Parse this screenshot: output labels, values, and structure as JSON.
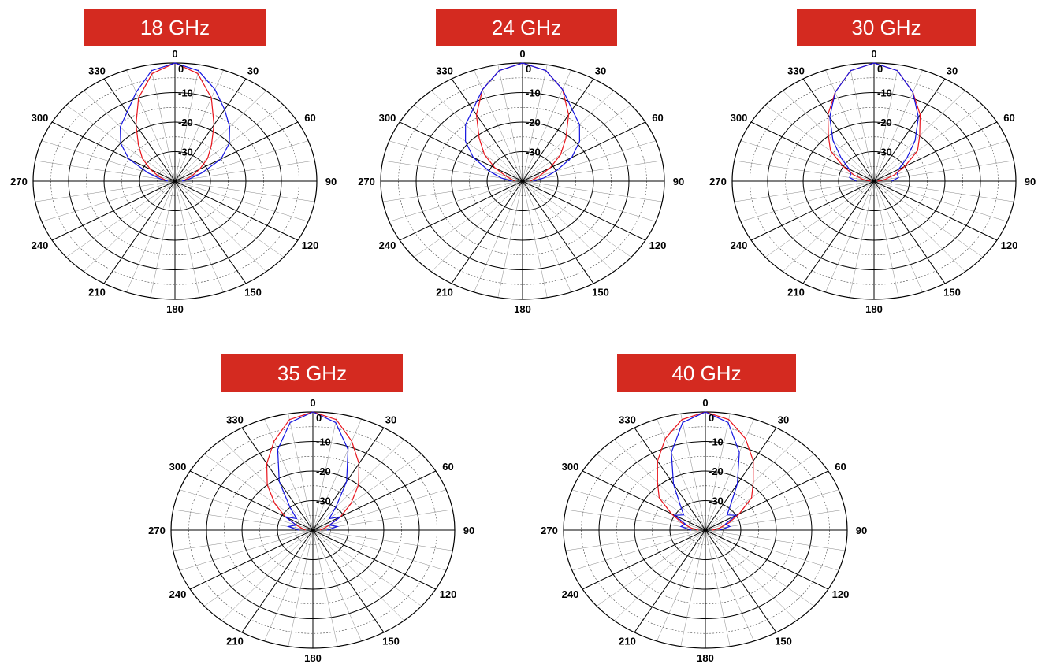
{
  "style": {
    "banner_color": "#d42a20",
    "series_colors": [
      "#e8141c",
      "#1414e0"
    ]
  },
  "chart_data": [
    {
      "type": "polar-line",
      "title": "18 GHz",
      "angle_ticks": [
        "0",
        "30",
        "60",
        "90",
        "120",
        "150",
        "180",
        "210",
        "240",
        "270",
        "300",
        "330"
      ],
      "radial_ticks": [
        "0",
        "-10",
        "-20",
        "-30"
      ],
      "r_range": [
        -40,
        0
      ],
      "angle_range": [
        -90,
        90
      ],
      "series": [
        {
          "color": "#e8141c",
          "points": [
            [
              -90,
              -37.5
            ],
            [
              -80,
              -37
            ],
            [
              -70,
              -35
            ],
            [
              -60,
              -32
            ],
            [
              -50,
              -28
            ],
            [
              -40,
              -24
            ],
            [
              -30,
              -18
            ],
            [
              -20,
              -10
            ],
            [
              -10,
              -3
            ],
            [
              0,
              0
            ],
            [
              10,
              -3
            ],
            [
              20,
              -10
            ],
            [
              30,
              -18
            ],
            [
              40,
              -24
            ],
            [
              50,
              -28
            ],
            [
              60,
              -32
            ],
            [
              70,
              -35
            ],
            [
              80,
              -37
            ],
            [
              90,
              -37.5
            ]
          ]
        },
        {
          "color": "#1414e0",
          "points": [
            [
              -90,
              -38
            ],
            [
              -80,
              -36
            ],
            [
              -70,
              -32
            ],
            [
              -60,
              -25
            ],
            [
              -50,
              -20
            ],
            [
              -40,
              -16
            ],
            [
              -30,
              -13
            ],
            [
              -20,
              -8
            ],
            [
              -10,
              -2
            ],
            [
              0,
              0
            ],
            [
              10,
              -2
            ],
            [
              20,
              -7
            ],
            [
              30,
              -12
            ],
            [
              40,
              -16
            ],
            [
              50,
              -20
            ],
            [
              60,
              -25
            ],
            [
              70,
              -32
            ],
            [
              80,
              -36
            ],
            [
              90,
              -38
            ]
          ]
        }
      ]
    },
    {
      "type": "polar-line",
      "title": "24 GHz",
      "angle_ticks": [
        "0",
        "30",
        "60",
        "90",
        "120",
        "150",
        "180",
        "210",
        "240",
        "270",
        "300",
        "330"
      ],
      "radial_ticks": [
        "0",
        "-10",
        "-20",
        "-30"
      ],
      "r_range": [
        -40,
        0
      ],
      "angle_range": [
        -90,
        90
      ],
      "series": [
        {
          "color": "#e8141c",
          "points": [
            [
              -90,
              -38
            ],
            [
              -80,
              -37
            ],
            [
              -70,
              -35
            ],
            [
              -60,
              -31
            ],
            [
              -50,
              -26
            ],
            [
              -40,
              -21
            ],
            [
              -30,
              -14
            ],
            [
              -20,
              -7
            ],
            [
              -10,
              -2
            ],
            [
              0,
              0
            ],
            [
              10,
              -2
            ],
            [
              20,
              -7
            ],
            [
              30,
              -14
            ],
            [
              40,
              -21
            ],
            [
              50,
              -26
            ],
            [
              60,
              -31
            ],
            [
              70,
              -35
            ],
            [
              80,
              -37
            ],
            [
              90,
              -38
            ]
          ]
        },
        {
          "color": "#1414e0",
          "points": [
            [
              -90,
              -37
            ],
            [
              -80,
              -34
            ],
            [
              -70,
              -30
            ],
            [
              -60,
              -24
            ],
            [
              -50,
              -19
            ],
            [
              -40,
              -15
            ],
            [
              -30,
              -12
            ],
            [
              -20,
              -7
            ],
            [
              -10,
              -2
            ],
            [
              0,
              0
            ],
            [
              10,
              -2
            ],
            [
              20,
              -7
            ],
            [
              30,
              -12
            ],
            [
              40,
              -15
            ],
            [
              50,
              -19
            ],
            [
              60,
              -24
            ],
            [
              70,
              -30
            ],
            [
              80,
              -34
            ],
            [
              90,
              -37
            ]
          ]
        }
      ]
    },
    {
      "type": "polar-line",
      "title": "30 GHz",
      "angle_ticks": [
        "0",
        "30",
        "60",
        "90",
        "120",
        "150",
        "180",
        "210",
        "240",
        "270",
        "300",
        "330"
      ],
      "radial_ticks": [
        "0",
        "-10",
        "-20",
        "-30"
      ],
      "r_range": [
        -40,
        0
      ],
      "angle_range": [
        -90,
        90
      ],
      "series": [
        {
          "color": "#e8141c",
          "points": [
            [
              -90,
              -39
            ],
            [
              -80,
              -37
            ],
            [
              -70,
              -34
            ],
            [
              -60,
              -30
            ],
            [
              -50,
              -24
            ],
            [
              -40,
              -20
            ],
            [
              -30,
              -14
            ],
            [
              -20,
              -8
            ],
            [
              -10,
              -2
            ],
            [
              0,
              0
            ],
            [
              10,
              -2
            ],
            [
              20,
              -8
            ],
            [
              30,
              -14
            ],
            [
              40,
              -20
            ],
            [
              50,
              -24
            ],
            [
              60,
              -30
            ],
            [
              70,
              -34
            ],
            [
              80,
              -37
            ],
            [
              90,
              -39
            ]
          ]
        },
        {
          "color": "#1414e0",
          "points": [
            [
              -90,
              -35
            ],
            [
              -80,
              -33
            ],
            [
              -70,
              -33
            ],
            [
              -60,
              -32
            ],
            [
              -50,
              -28
            ],
            [
              -40,
              -22
            ],
            [
              -30,
              -15
            ],
            [
              -20,
              -8
            ],
            [
              -10,
              -2
            ],
            [
              0,
              0
            ],
            [
              10,
              -2
            ],
            [
              20,
              -8
            ],
            [
              30,
              -15
            ],
            [
              40,
              -22
            ],
            [
              50,
              -28
            ],
            [
              60,
              -32
            ],
            [
              70,
              -33
            ],
            [
              80,
              -33
            ],
            [
              90,
              -35
            ]
          ]
        }
      ]
    },
    {
      "type": "polar-line",
      "title": "35 GHz",
      "angle_ticks": [
        "0",
        "30",
        "60",
        "90",
        "120",
        "150",
        "180",
        "210",
        "240",
        "270",
        "300",
        "330"
      ],
      "radial_ticks": [
        "0",
        "-10",
        "-20",
        "-30"
      ],
      "r_range": [
        -40,
        0
      ],
      "angle_range": [
        -90,
        90
      ],
      "series": [
        {
          "color": "#e8141c",
          "points": [
            [
              -90,
              -38
            ],
            [
              -80,
              -37
            ],
            [
              -70,
              -35
            ],
            [
              -60,
              -31
            ],
            [
              -50,
              -26
            ],
            [
              -40,
              -20
            ],
            [
              -30,
              -14
            ],
            [
              -20,
              -8
            ],
            [
              -10,
              -2
            ],
            [
              0,
              0
            ],
            [
              10,
              -2
            ],
            [
              20,
              -8
            ],
            [
              30,
              -14
            ],
            [
              40,
              -20
            ],
            [
              50,
              -26
            ],
            [
              60,
              -31
            ],
            [
              70,
              -35
            ],
            [
              80,
              -37
            ],
            [
              90,
              -38
            ]
          ]
        },
        {
          "color": "#1414e0",
          "points": [
            [
              -90,
              -36
            ],
            [
              -80,
              -33
            ],
            [
              -70,
              -35
            ],
            [
              -60,
              -31
            ],
            [
              -50,
              -34
            ],
            [
              -40,
              -30
            ],
            [
              -30,
              -21
            ],
            [
              -20,
              -11
            ],
            [
              -10,
              -3
            ],
            [
              0,
              0
            ],
            [
              10,
              -3
            ],
            [
              20,
              -11
            ],
            [
              30,
              -21
            ],
            [
              40,
              -30
            ],
            [
              50,
              -34
            ],
            [
              60,
              -31
            ],
            [
              70,
              -35
            ],
            [
              80,
              -33
            ],
            [
              90,
              -36
            ]
          ]
        }
      ]
    },
    {
      "type": "polar-line",
      "title": "40 GHz",
      "angle_ticks": [
        "0",
        "30",
        "60",
        "90",
        "120",
        "150",
        "180",
        "210",
        "240",
        "270",
        "300",
        "330"
      ],
      "radial_ticks": [
        "0",
        "-10",
        "-20",
        "-30"
      ],
      "r_range": [
        -40,
        0
      ],
      "angle_range": [
        -90,
        90
      ],
      "series": [
        {
          "color": "#e8141c",
          "points": [
            [
              -90,
              -38
            ],
            [
              -80,
              -36
            ],
            [
              -70,
              -33
            ],
            [
              -60,
              -29
            ],
            [
              -50,
              -23
            ],
            [
              -40,
              -19
            ],
            [
              -30,
              -13
            ],
            [
              -20,
              -7
            ],
            [
              -10,
              -2
            ],
            [
              0,
              0
            ],
            [
              10,
              -2
            ],
            [
              20,
              -7
            ],
            [
              30,
              -13
            ],
            [
              40,
              -19
            ],
            [
              50,
              -23
            ],
            [
              60,
              -29
            ],
            [
              70,
              -33
            ],
            [
              80,
              -36
            ],
            [
              90,
              -38
            ]
          ]
        },
        {
          "color": "#1414e0",
          "points": [
            [
              -90,
              -36
            ],
            [
              -80,
              -33
            ],
            [
              -70,
              -34
            ],
            [
              -60,
              -30
            ],
            [
              -50,
              -32
            ],
            [
              -40,
              -29
            ],
            [
              -30,
              -22
            ],
            [
              -20,
              -12
            ],
            [
              -10,
              -3
            ],
            [
              0,
              0
            ],
            [
              10,
              -3
            ],
            [
              20,
              -12
            ],
            [
              30,
              -22
            ],
            [
              40,
              -29
            ],
            [
              50,
              -32
            ],
            [
              60,
              -30
            ],
            [
              70,
              -34
            ],
            [
              80,
              -33
            ],
            [
              90,
              -36
            ]
          ]
        }
      ]
    }
  ]
}
